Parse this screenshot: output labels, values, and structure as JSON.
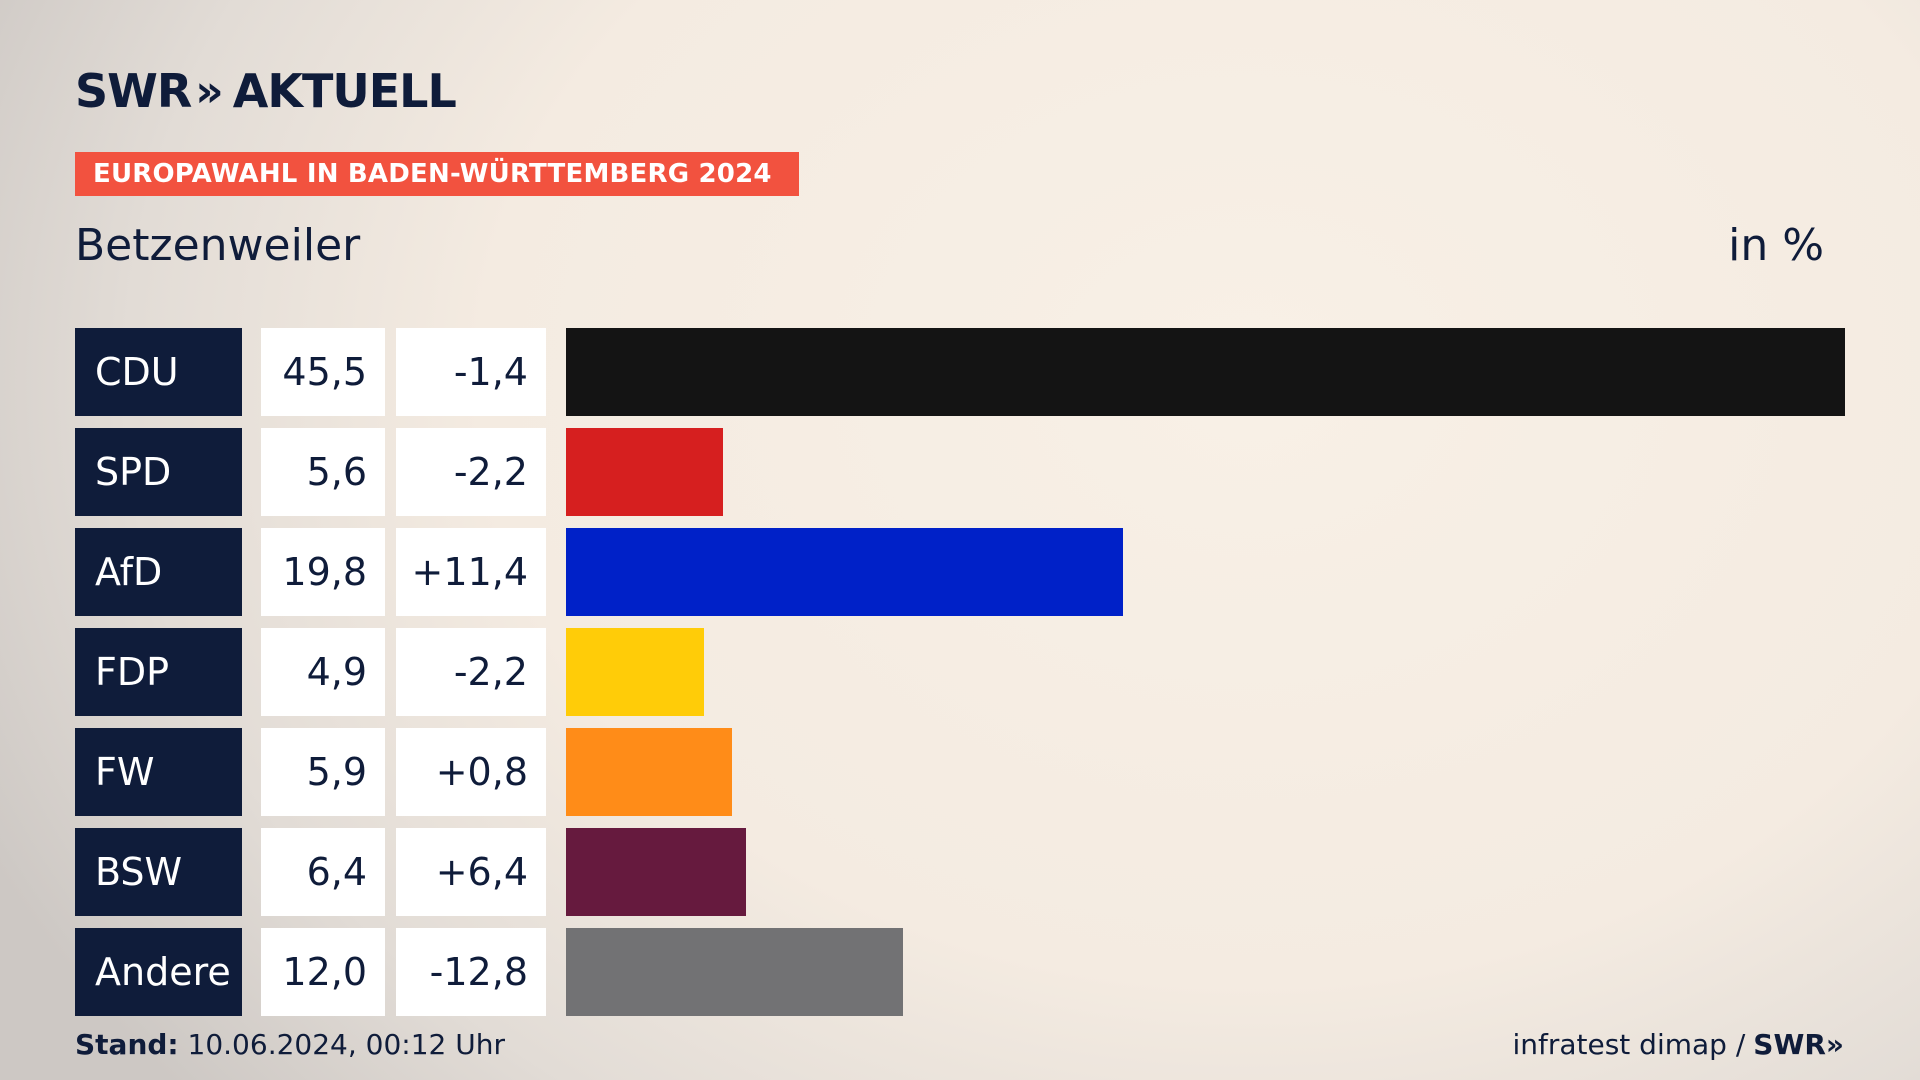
{
  "header": {
    "logo_brand": "SWR",
    "logo_product": "AKTUELL",
    "topic": "EUROPAWAHL IN BADEN-WÜRTTEMBERG 2024",
    "place": "Betzenweiler",
    "unit": "in %"
  },
  "chart_data": {
    "type": "bar",
    "orientation": "horizontal",
    "categories": [
      "CDU",
      "SPD",
      "AfD",
      "FDP",
      "FW",
      "BSW",
      "Andere"
    ],
    "values": [
      45.5,
      5.6,
      19.8,
      4.9,
      5.9,
      6.4,
      12.0
    ],
    "value_labels": [
      "45,5",
      "5,6",
      "19,8",
      "4,9",
      "5,9",
      "6,4",
      "12,0"
    ],
    "changes": [
      -1.4,
      -2.2,
      11.4,
      -2.2,
      0.8,
      6.4,
      -12.8
    ],
    "change_labels": [
      "-1,4",
      "-2,2",
      "+11,4",
      "-2,2",
      "+0,8",
      "+6,4",
      "-12,8"
    ],
    "colors": [
      "#141414",
      "#d61f1f",
      "#0021c8",
      "#ffcc08",
      "#ff8c18",
      "#661a3e",
      "#727274"
    ],
    "xlim": [
      0,
      45.5
    ]
  },
  "footer": {
    "stand_label": "Stand:",
    "stand_value": "10.06.2024, 00:12 Uhr",
    "source": "infratest dimap /",
    "brand": "SWR"
  }
}
